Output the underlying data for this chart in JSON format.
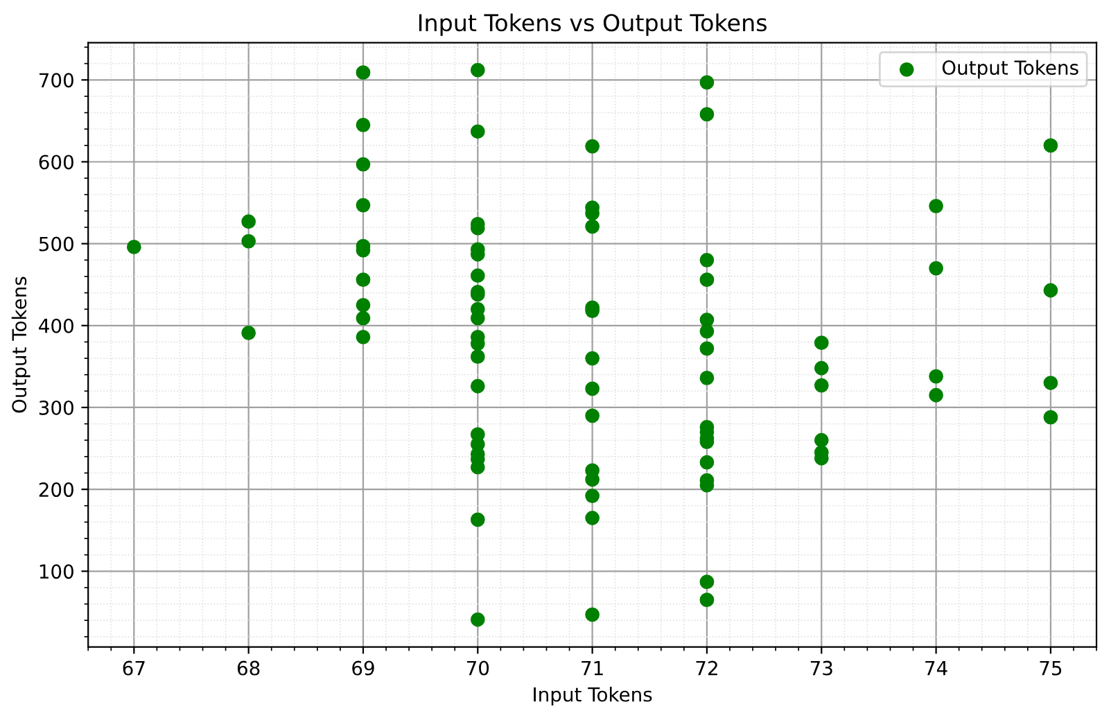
{
  "chart_data": {
    "type": "scatter",
    "title": "Input Tokens vs Output Tokens",
    "xlabel": "Input Tokens",
    "ylabel": "Output Tokens",
    "xlim": [
      66.6,
      75.4
    ],
    "ylim": [
      7.45,
      745.5
    ],
    "xticks": [
      67,
      68,
      69,
      70,
      71,
      72,
      73,
      74,
      75
    ],
    "yticks": [
      100,
      200,
      300,
      400,
      500,
      600,
      700
    ],
    "grid": true,
    "legend": "top right",
    "marker": "circle",
    "series": [
      {
        "name": "Output Tokens",
        "color": "#008000",
        "x": [
          67,
          68,
          68,
          68,
          69,
          69,
          69,
          69,
          69,
          69,
          69,
          69,
          69,
          69,
          70,
          70,
          70,
          70,
          70,
          70,
          70,
          70,
          70,
          70,
          70,
          70,
          70,
          70,
          70,
          70,
          70,
          70,
          70,
          70,
          70,
          70,
          71,
          71,
          71,
          71,
          71,
          71,
          71,
          71,
          71,
          71,
          71,
          71,
          71,
          71,
          72,
          72,
          72,
          72,
          72,
          72,
          72,
          72,
          72,
          72,
          72,
          72,
          72,
          72,
          72,
          72,
          72,
          73,
          73,
          73,
          73,
          73,
          73,
          74,
          74,
          74,
          74,
          75,
          75,
          75,
          75
        ],
        "values": [
          496,
          527,
          503,
          391,
          709,
          645,
          597,
          547,
          497,
          492,
          456,
          425,
          409,
          386,
          712,
          637,
          524,
          519,
          493,
          487,
          461,
          441,
          438,
          420,
          409,
          386,
          378,
          362,
          326,
          267,
          255,
          243,
          237,
          227,
          163,
          41,
          619,
          544,
          537,
          521,
          422,
          418,
          360,
          323,
          290,
          223,
          212,
          192,
          165,
          47,
          697,
          658,
          480,
          456,
          407,
          393,
          372,
          336,
          276,
          270,
          262,
          258,
          233,
          211,
          205,
          87,
          65,
          379,
          348,
          327,
          260,
          245,
          238,
          546,
          470,
          338,
          315,
          620,
          443,
          330,
          288
        ]
      }
    ]
  }
}
